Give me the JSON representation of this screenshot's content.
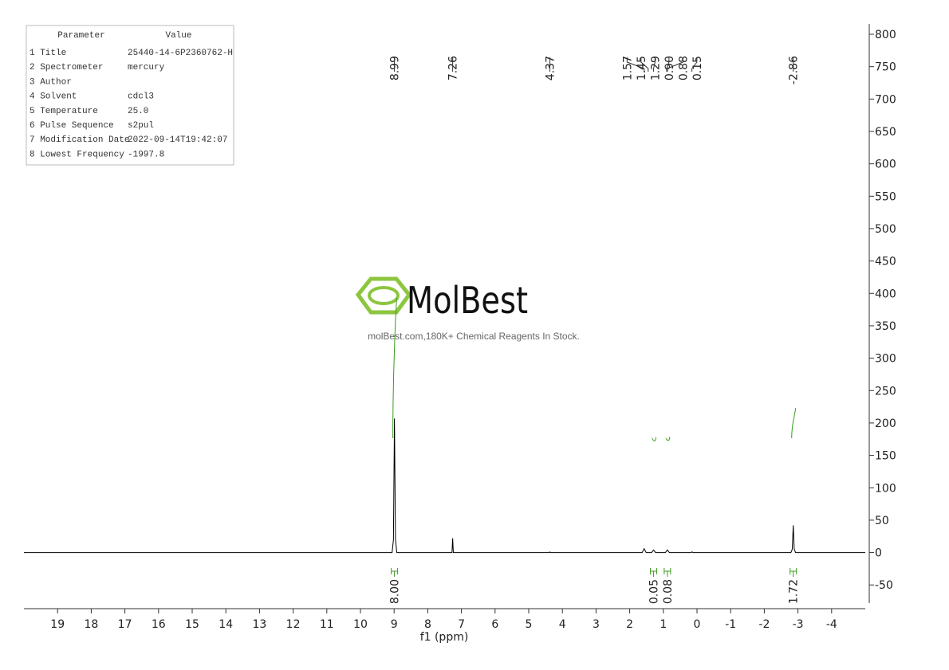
{
  "chart_data": {
    "type": "nmr",
    "x_label": "f1 (ppm)",
    "xlim": [
      20,
      -5
    ],
    "ylim": [
      -78,
      816
    ],
    "xticks": [
      19,
      18,
      17,
      16,
      15,
      14,
      13,
      12,
      11,
      10,
      9,
      8,
      7,
      6,
      5,
      4,
      3,
      2,
      1,
      0,
      -1,
      -2,
      -3,
      -4
    ],
    "yticks": [
      800,
      750,
      700,
      650,
      600,
      550,
      500,
      450,
      400,
      350,
      300,
      250,
      200,
      150,
      100,
      50,
      0,
      -50
    ],
    "color": "#000000",
    "x": [
      20,
      9.06,
      9.02,
      8.99,
      8.96,
      8.92,
      7.28,
      7.26,
      7.24,
      4.39,
      4.37,
      4.35,
      1.63,
      1.57,
      1.51,
      1.35,
      1.29,
      1.23,
      0.94,
      0.88,
      0.82,
      0.18,
      0.15,
      0.12,
      -2.79,
      -2.83,
      -2.86,
      -2.89,
      -2.93,
      -5
    ],
    "values": [
      0,
      0,
      20,
      207,
      20,
      0,
      0,
      22,
      0,
      0,
      1,
      0,
      0,
      6,
      0,
      0,
      4,
      0,
      0,
      4,
      0,
      0,
      1,
      0,
      0,
      5,
      42,
      5,
      0,
      0
    ],
    "peaks": [
      {
        "value": 8.99,
        "label": "8.99"
      },
      {
        "value": 7.26,
        "label": "7.26"
      },
      {
        "value": 4.37,
        "label": "4.37"
      },
      {
        "value": 1.57,
        "label": "1.57"
      },
      {
        "value": 1.45,
        "label": "1.45"
      },
      {
        "value": 1.29,
        "label": "1.29"
      },
      {
        "value": 0.9,
        "label": "0.90"
      },
      {
        "value": 0.88,
        "label": "0.88"
      },
      {
        "value": 0.15,
        "label": "0.15"
      },
      {
        "value": -2.86,
        "label": "-2.86"
      }
    ],
    "integrals": {
      "color": "#3a9a20",
      "x": [
        8.99,
        1.29,
        0.88,
        -2.86
      ],
      "values": [
        8.0,
        0.05,
        0.08,
        1.72
      ],
      "value_labels": [
        "8.00",
        "0.05",
        "0.08",
        "1.72"
      ]
    }
  },
  "table": {
    "header": [
      "Parameter",
      "Value"
    ],
    "rows": [
      [
        "1 Title",
        "25440-14-6P2360762-H"
      ],
      [
        "2 Spectrometer",
        "mercury"
      ],
      [
        "3 Author",
        ""
      ],
      [
        "4 Solvent",
        "cdcl3"
      ],
      [
        "5 Temperature",
        "25.0"
      ],
      [
        "6 Pulse Sequence",
        "s2pul"
      ],
      [
        "7 Modification Date",
        "2022-09-14T19:42:07"
      ],
      [
        "8 Lowest Frequency",
        "-1997.8"
      ]
    ]
  },
  "watermark": {
    "name": "MolBest",
    "tagline": "molBest.com,180K+ Chemical Reagents In Stock."
  }
}
